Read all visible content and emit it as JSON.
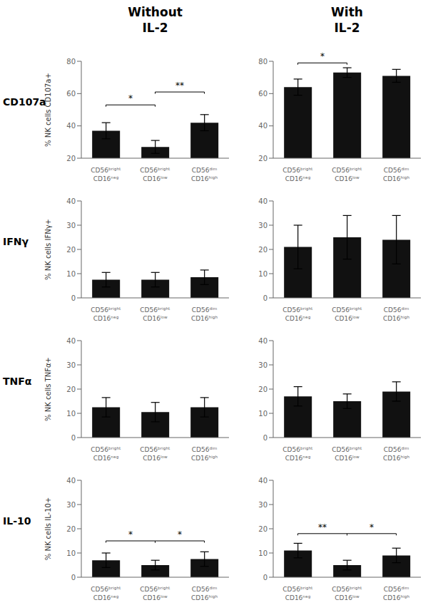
{
  "chart_data": [
    {
      "type": "bar",
      "title": "Without\nIL-2",
      "subtitle": "CD107a",
      "ylabel": "% NK cells CD107a+",
      "categories": [
        "CD56ᵇʳⁱᵍʰᵗ\nCD16ⁿᵉᵍ",
        "CD56ᵇʳⁱᵍʰᵗ\nCD16ˡᵒʷ",
        "CD56ᵈⁱᵐ\nCD16ʰⁱᵍʰ"
      ],
      "values": [
        37,
        27,
        42
      ],
      "errors": [
        5,
        4,
        5
      ],
      "color": "#111111",
      "ylim": [
        20,
        80
      ],
      "yticks": [
        20,
        40,
        60,
        80
      ],
      "grid": false,
      "annotations": [
        {
          "x1": 0,
          "x2": 1,
          "y": 53,
          "label": "*"
        },
        {
          "x1": 1,
          "x2": 2,
          "y": 61,
          "label": "**"
        }
      ]
    },
    {
      "type": "bar",
      "title": "With\nIL-2",
      "categories": [
        "CD56ᵇʳⁱᵍʰᵗ\nCD16ⁿᵉᵍ",
        "CD56ᵇʳⁱᵍʰᵗ\nCD16ˡᵒʷ",
        "CD56ᵈⁱᵐ\nCD16ʰⁱᵍʰ"
      ],
      "values": [
        64,
        73,
        71
      ],
      "errors": [
        5,
        3,
        4
      ],
      "color": "#111111",
      "ylim": [
        20,
        80
      ],
      "yticks": [
        20,
        40,
        60,
        80
      ],
      "grid": false,
      "annotations": [
        {
          "x1": 0,
          "x2": 1,
          "y": 79,
          "label": "*"
        }
      ]
    },
    {
      "type": "bar",
      "subtitle": "IFNγ",
      "ylabel": "% NK cells IFNγ+",
      "categories": [
        "CD56ᵇʳⁱᵍʰᵗ\nCD16ⁿᵉᵍ",
        "CD56ᵇʳⁱᵍʰᵗ\nCD16ˡᵒʷ",
        "CD56ᵈⁱᵐ\nCD16ʰⁱᵍʰ"
      ],
      "values": [
        7.5,
        7.5,
        8.5
      ],
      "errors": [
        3,
        3,
        3
      ],
      "color": "#111111",
      "ylim": [
        0,
        40
      ],
      "yticks": [
        0,
        10,
        20,
        30,
        40
      ],
      "grid": false,
      "annotations": []
    },
    {
      "type": "bar",
      "categories": [
        "CD56ᵇʳⁱᵍʰᵗ\nCD16ⁿᵉᵍ",
        "CD56ᵇʳⁱᵍʰᵗ\nCD16ˡᵒʷ",
        "CD56ᵈⁱᵐ\nCD16ʰⁱᵍʰ"
      ],
      "values": [
        21,
        25,
        24
      ],
      "errors": [
        9,
        9,
        10
      ],
      "color": "#111111",
      "ylim": [
        0,
        40
      ],
      "yticks": [
        0,
        10,
        20,
        30,
        40
      ],
      "grid": false,
      "annotations": []
    },
    {
      "type": "bar",
      "subtitle": "TNFα",
      "ylabel": "% NK cells TNFα+",
      "categories": [
        "CD56ᵇʳⁱᵍʰᵗ\nCD16ⁿᵉᵍ",
        "CD56ᵇʳⁱᵍʰᵗ\nCD16ˡᵒʷ",
        "CD56ᵈⁱᵐ\nCD16ʰⁱᵍʰ"
      ],
      "values": [
        12.5,
        10.5,
        12.5
      ],
      "errors": [
        4,
        4,
        4
      ],
      "color": "#111111",
      "ylim": [
        0,
        40
      ],
      "yticks": [
        0,
        10,
        20,
        30,
        40
      ],
      "grid": false,
      "annotations": []
    },
    {
      "type": "bar",
      "categories": [
        "CD56ᵇʳⁱᵍʰᵗ\nCD16ⁿᵉᵍ",
        "CD56ᵇʳⁱᵍʰᵗ\nCD16ˡᵒʷ",
        "CD56ᵈⁱᵐ\nCD16ʰⁱᵍʰ"
      ],
      "values": [
        17,
        15,
        19
      ],
      "errors": [
        4,
        3,
        4
      ],
      "color": "#111111",
      "ylim": [
        0,
        40
      ],
      "yticks": [
        0,
        10,
        20,
        30,
        40
      ],
      "grid": false,
      "annotations": []
    },
    {
      "type": "bar",
      "subtitle": "IL-10",
      "ylabel": "% NK cells IL-10+",
      "categories": [
        "CD56ᵇʳⁱᵍʰᵗ\nCD16ⁿᵉᵍ",
        "CD56ᵇʳⁱᵍʰᵗ\nCD16ˡᵒʷ",
        "CD56ᵈⁱᵐ\nCD16ʰⁱᵍʰ"
      ],
      "values": [
        7,
        5,
        7.5
      ],
      "errors": [
        3,
        2,
        3
      ],
      "color": "#111111",
      "ylim": [
        0,
        40
      ],
      "yticks": [
        0,
        10,
        20,
        30,
        40
      ],
      "grid": false,
      "annotations": [
        {
          "x1": 0,
          "x2": 1,
          "y": 15,
          "label": "*"
        },
        {
          "x1": 1,
          "x2": 2,
          "y": 15,
          "label": "*"
        }
      ]
    },
    {
      "type": "bar",
      "categories": [
        "CD56ᵇʳⁱᵍʰᵗ\nCD16ⁿᵉᵍ",
        "CD56ᵇʳⁱᵍʰᵗ\nCD16ˡᵒʷ",
        "CD56ᵈⁱᵐ\nCD16ʰⁱᵍʰ"
      ],
      "values": [
        11,
        5,
        9
      ],
      "errors": [
        3,
        2,
        3
      ],
      "color": "#111111",
      "ylim": [
        0,
        40
      ],
      "yticks": [
        0,
        10,
        20,
        30,
        40
      ],
      "grid": false,
      "annotations": [
        {
          "x1": 0,
          "x2": 1,
          "y": 18,
          "label": "**"
        },
        {
          "x1": 1,
          "x2": 2,
          "y": 18,
          "label": "*"
        }
      ]
    }
  ]
}
